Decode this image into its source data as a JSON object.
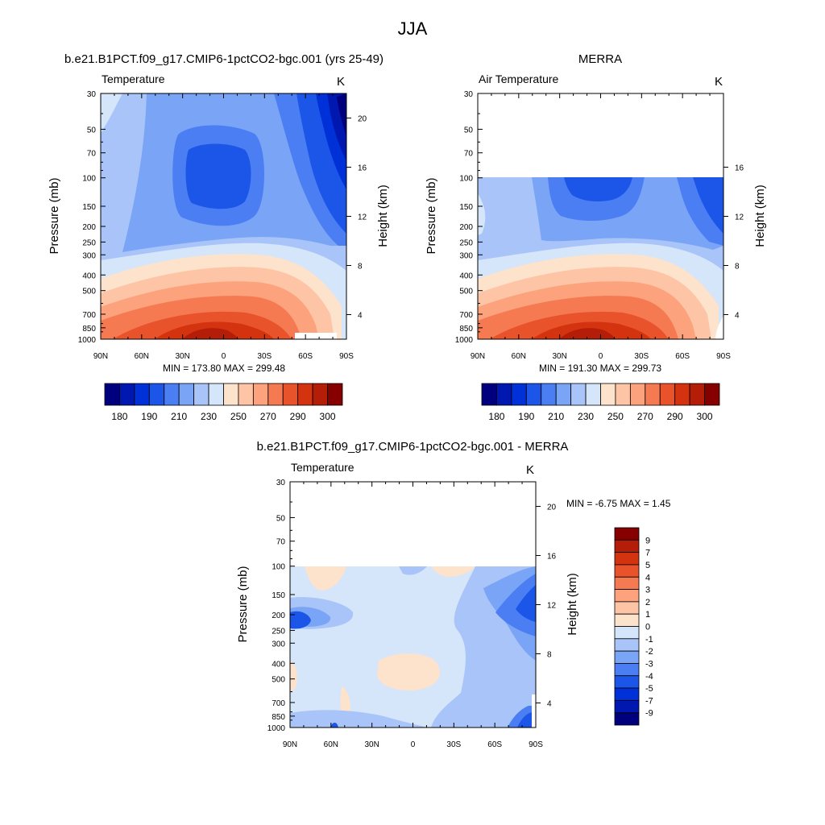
{
  "figure_title": "JJA",
  "panels": [
    {
      "id": "model",
      "title": "b.e21.B1PCT.f09_g17.CMIP6-1pctCO2-bgc.001 (yrs 25-49)",
      "left_label": "Temperature",
      "unit_label": "K",
      "y_label": "Pressure (mb)",
      "y2_label": "Height (km)",
      "minmax_text": "MIN = 173.80  MAX = 299.48"
    },
    {
      "id": "obs",
      "title": "MERRA",
      "left_label": "Air Temperature",
      "unit_label": "K",
      "y_label": "Pressure (mb)",
      "y2_label": "Height (km)",
      "minmax_text": "MIN = 191.30  MAX = 299.73"
    },
    {
      "id": "diff",
      "title": "b.e21.B1PCT.f09_g17.CMIP6-1pctCO2-bgc.001 - MERRA",
      "left_label": "Temperature",
      "unit_label": "K",
      "y_label": "Pressure (mb)",
      "y2_label": "Height (km)",
      "minmax_text": "MIN =  -6.75  MAX =   1.45"
    }
  ],
  "chart_data": [
    {
      "type": "heatmap",
      "name": "model",
      "x_ticks": [
        "90N",
        "60N",
        "30N",
        "0",
        "30S",
        "60S",
        "90S"
      ],
      "y_ticks": [
        30,
        50,
        70,
        100,
        150,
        200,
        250,
        300,
        400,
        500,
        700,
        850,
        1000
      ],
      "y2_ticks": [
        4,
        8,
        12,
        16,
        20
      ],
      "y_scale": "log",
      "ylim": [
        30,
        1000
      ],
      "data_top_pressure": 30,
      "colorbar": {
        "orientation": "horizontal",
        "colors": [
          "#00007f",
          "#0018b0",
          "#0030d8",
          "#1c56e8",
          "#4a7ef2",
          "#7aa4f6",
          "#a9c4f8",
          "#d5e5fa",
          "#fde2cc",
          "#fdc4a5",
          "#fca27c",
          "#f57a52",
          "#e8532b",
          "#d3330f",
          "#b41e08",
          "#860000"
        ],
        "labels": [
          "180",
          "190",
          "210",
          "230",
          "250",
          "270",
          "290",
          "300"
        ]
      }
    },
    {
      "type": "heatmap",
      "name": "obs",
      "x_ticks": [
        "90N",
        "60N",
        "30N",
        "0",
        "30S",
        "60S",
        "90S"
      ],
      "y_ticks": [
        30,
        50,
        70,
        100,
        150,
        200,
        250,
        300,
        400,
        500,
        700,
        850,
        1000
      ],
      "y2_ticks": [
        4,
        8,
        12,
        16
      ],
      "y_scale": "log",
      "ylim": [
        30,
        1000
      ],
      "data_top_pressure": 100,
      "colorbar": {
        "orientation": "horizontal",
        "colors": [
          "#00007f",
          "#0018b0",
          "#0030d8",
          "#1c56e8",
          "#4a7ef2",
          "#7aa4f6",
          "#a9c4f8",
          "#d5e5fa",
          "#fde2cc",
          "#fdc4a5",
          "#fca27c",
          "#f57a52",
          "#e8532b",
          "#d3330f",
          "#b41e08",
          "#860000"
        ],
        "labels": [
          "180",
          "190",
          "210",
          "230",
          "250",
          "270",
          "290",
          "300"
        ]
      }
    },
    {
      "type": "heatmap",
      "name": "diff",
      "x_ticks": [
        "90N",
        "60N",
        "30N",
        "0",
        "30S",
        "60S",
        "90S"
      ],
      "y_ticks": [
        30,
        50,
        70,
        100,
        150,
        200,
        250,
        300,
        400,
        500,
        700,
        850,
        1000
      ],
      "y2_ticks": [
        4,
        8,
        12,
        16,
        20
      ],
      "y_scale": "log",
      "ylim": [
        30,
        1000
      ],
      "data_top_pressure": 100,
      "colorbar": {
        "orientation": "vertical",
        "colors": [
          "#860000",
          "#b41e08",
          "#d3330f",
          "#e8532b",
          "#f57a52",
          "#fca27c",
          "#fdc4a5",
          "#fde2cc",
          "#d5e5fa",
          "#a9c4f8",
          "#7aa4f6",
          "#4a7ef2",
          "#1c56e8",
          "#0030d8",
          "#0018b0",
          "#00007f"
        ],
        "labels": [
          "9",
          "7",
          "5",
          "4",
          "3",
          "2",
          "1",
          "0",
          "-1",
          "-2",
          "-3",
          "-4",
          "-5",
          "-7",
          "-9"
        ]
      }
    }
  ]
}
